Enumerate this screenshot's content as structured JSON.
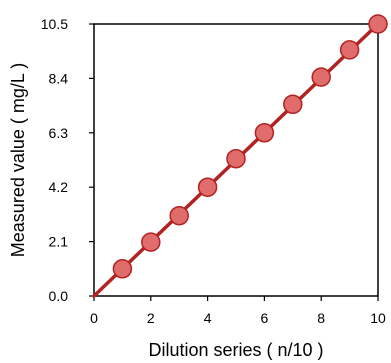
{
  "chart_data": {
    "type": "scatter",
    "title": "",
    "xlabel": "Dilution series ( n/10 )",
    "ylabel": "Measured value ( mg/L )",
    "xlim": [
      0,
      10
    ],
    "ylim": [
      0,
      10.5
    ],
    "xticks": [
      0,
      2,
      4,
      6,
      8,
      10
    ],
    "xtick_labels": [
      "0",
      "2",
      "4",
      "6",
      "8",
      "10"
    ],
    "yticks": [
      0,
      2.1,
      4.2,
      6.3,
      8.4,
      10.5
    ],
    "ytick_labels": [
      "0.0",
      "2.1",
      "4.2",
      "6.3",
      "8.4",
      "10.5"
    ],
    "grid": false,
    "legend": "none",
    "series": [
      {
        "x": [
          1,
          2,
          3,
          4,
          5,
          6,
          7,
          8,
          9,
          10
        ],
        "y": [
          1.05,
          2.08,
          3.1,
          4.2,
          5.3,
          6.3,
          7.4,
          8.45,
          9.5,
          10.5
        ],
        "marker_fill": "#e06c6c",
        "marker_edge": "#b22222"
      }
    ],
    "trendline": {
      "x": [
        0,
        10
      ],
      "y": [
        0,
        10.5
      ],
      "color": "#b22222"
    }
  }
}
